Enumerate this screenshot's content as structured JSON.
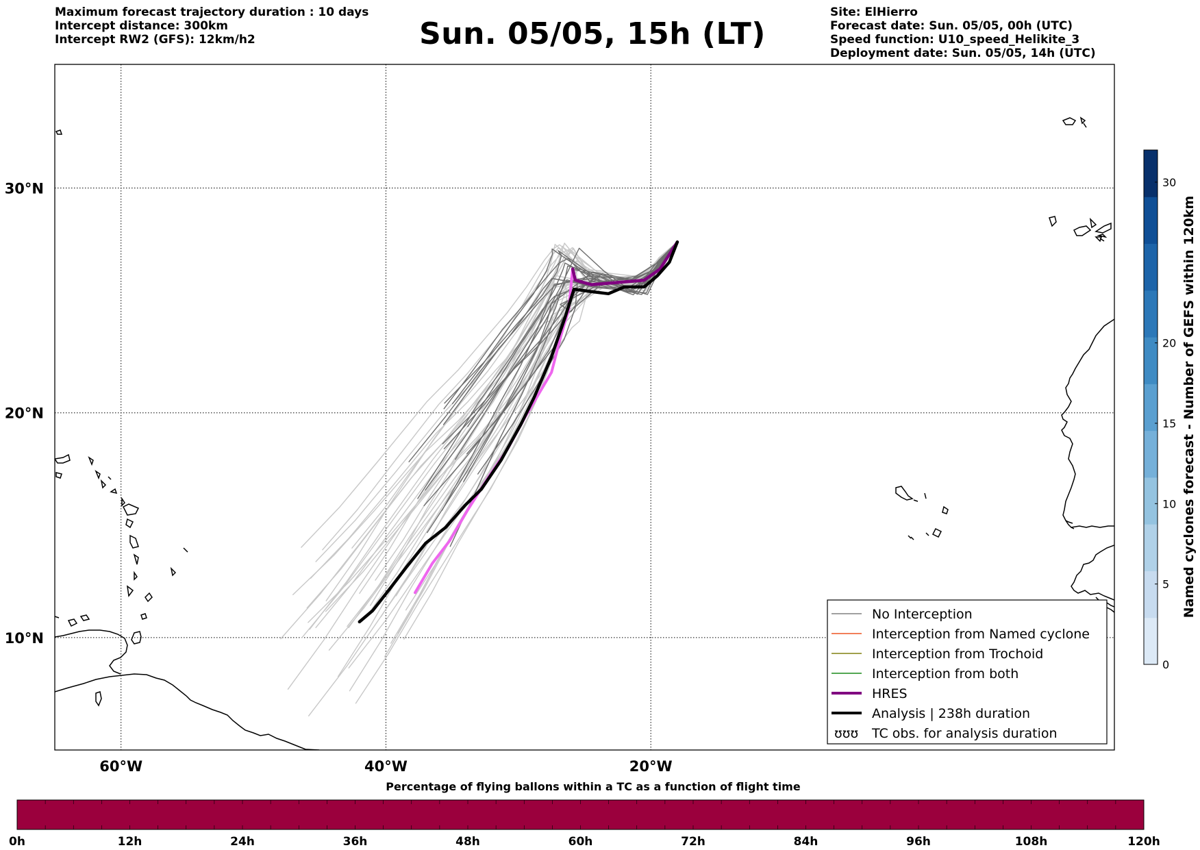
{
  "header": {
    "left_lines": [
      "Maximum forecast trajectory duration : 10 days",
      "Intercept distance: 300km",
      "Intercept RW2 (GFS):  12km/h2"
    ],
    "title": "Sun. 05/05, 15h (LT)",
    "right_lines": [
      "Site: ElHierro",
      "Forecast date: Sun. 05/05, 00h (UTC)",
      "Speed function: U10_speed_Helikite_3",
      "Deployment date: Sun. 05/05, 14h (UTC)"
    ]
  },
  "map": {
    "lon_range": [
      -65,
      15
    ],
    "lat_range": [
      5,
      35.5
    ],
    "lat_labels": [
      {
        "lat": 30,
        "text": "30°N"
      },
      {
        "lat": 20,
        "text": "20°N"
      },
      {
        "lat": 10,
        "text": "10°N"
      }
    ],
    "lon_labels": [
      {
        "lon": -60,
        "text": "60°W"
      },
      {
        "lon": -40,
        "text": "40°W"
      },
      {
        "lon": -20,
        "text": "20°W"
      }
    ],
    "grid": "dotted",
    "trajectories": {
      "analysis": {
        "color": "#000000",
        "points": [
          [
            -42.0,
            10.7
          ],
          [
            -41.0,
            11.2
          ],
          [
            -39.8,
            12.1
          ],
          [
            -38.5,
            13.1
          ],
          [
            -37.0,
            14.2
          ],
          [
            -35.5,
            14.9
          ],
          [
            -34.0,
            15.9
          ],
          [
            -32.8,
            16.6
          ],
          [
            -31.3,
            17.9
          ],
          [
            -29.8,
            19.5
          ],
          [
            -28.8,
            20.7
          ],
          [
            -27.5,
            22.5
          ],
          [
            -26.5,
            24.2
          ],
          [
            -25.8,
            25.5
          ],
          [
            -24.6,
            25.4
          ],
          [
            -23.2,
            25.3
          ],
          [
            -22.0,
            25.6
          ],
          [
            -20.5,
            25.6
          ],
          [
            -19.5,
            26.1
          ],
          [
            -18.6,
            26.7
          ],
          [
            -18.0,
            27.6
          ]
        ]
      },
      "hres": {
        "color": "#800080",
        "points": [
          [
            -25.9,
            26.4
          ],
          [
            -25.7,
            25.9
          ],
          [
            -24.5,
            25.7
          ],
          [
            -22.5,
            25.8
          ],
          [
            -20.5,
            25.9
          ],
          [
            -19.3,
            26.4
          ],
          [
            -18.0,
            27.6
          ]
        ]
      },
      "hres_tail": {
        "color": "#ee66ee",
        "points": [
          [
            -25.9,
            26.4
          ],
          [
            -26.2,
            24.6
          ],
          [
            -26.8,
            23.4
          ],
          [
            -27.5,
            21.8
          ],
          [
            -28.5,
            20.8
          ],
          [
            -29.5,
            19.8
          ],
          [
            -30.8,
            18.4
          ],
          [
            -32.3,
            17.1
          ],
          [
            -33.8,
            15.7
          ],
          [
            -35.2,
            14.3
          ],
          [
            -36.5,
            13.3
          ],
          [
            -37.8,
            12.0
          ]
        ]
      },
      "members_dark_count": 18,
      "members_light_count": 34
    },
    "legend": [
      {
        "label": "No Interception",
        "color": "#808080",
        "style": "thin"
      },
      {
        "label": "Interception from Named cyclone",
        "color": "#ee5522",
        "style": "thin"
      },
      {
        "label": "Interception from Trochoid",
        "color": "#808010",
        "style": "thin"
      },
      {
        "label": "Interception from both",
        "color": "#1a8a1a",
        "style": "thin"
      },
      {
        "label": "HRES",
        "color": "#800080",
        "style": "thick"
      },
      {
        "label": "Analysis | 238h duration",
        "color": "#000000",
        "style": "thick"
      },
      {
        "label": "TC obs. for analysis duration",
        "color": "#000000",
        "style": "symbol",
        "symbol": "ʊʊʊ"
      }
    ]
  },
  "colorbar": {
    "title": "Named cyclones forecast - Number of GEFS within 120km",
    "min": 0,
    "max": 32,
    "ticks": [
      0,
      5,
      10,
      15,
      20,
      30
    ],
    "colors": [
      "#dce9f6",
      "#c7dbef",
      "#b0d1e8",
      "#94c3e0",
      "#75b0d9",
      "#5a9fd0",
      "#3f8bc3",
      "#2c78b8",
      "#1d64a9",
      "#0f4f96",
      "#08306b"
    ]
  },
  "percentage_bar": {
    "title": "Percentage of flying ballons within a TC as a function of flight time",
    "color": "#9b003d",
    "ticks": [
      "0h",
      "12h",
      "24h",
      "36h",
      "48h",
      "60h",
      "72h",
      "84h",
      "96h",
      "108h",
      "120h"
    ],
    "value_percent": 0
  }
}
